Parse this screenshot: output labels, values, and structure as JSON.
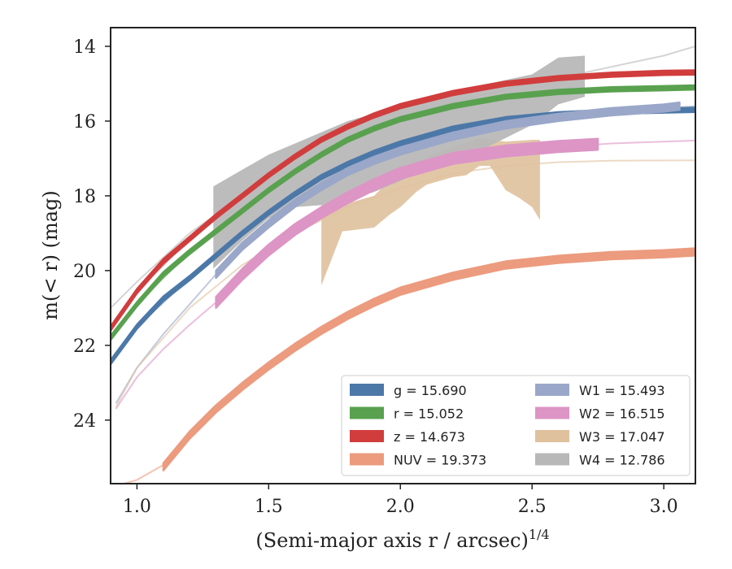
{
  "chart_data": {
    "type": "line",
    "xlabel": "(Semi-major axis r / arcsec)",
    "xlabel_sup": "1/4",
    "ylabel": "m(< r) (mag)",
    "xlim": [
      0.9,
      3.12
    ],
    "ylim": [
      25.7,
      13.5
    ],
    "y_inverted": true,
    "x_ticks": [
      1.0,
      1.5,
      2.0,
      2.5,
      3.0
    ],
    "x_tick_labels": [
      "1.0",
      "1.5",
      "2.0",
      "2.5",
      "3.0"
    ],
    "y_ticks": [
      14,
      16,
      18,
      20,
      22,
      24
    ],
    "y_tick_labels": [
      "14",
      "16",
      "18",
      "20",
      "22",
      "24"
    ],
    "legend": {
      "placement": "lower-right",
      "columns": 2,
      "entries": [
        {
          "label": "g = 15.690",
          "color": "#4c78a8"
        },
        {
          "label": "r = 15.052",
          "color": "#59a14f"
        },
        {
          "label": "z = 14.673",
          "color": "#d13d3d"
        },
        {
          "label": "NUV = 19.373",
          "color": "#ec9b7e"
        },
        {
          "label": "W1 = 15.493",
          "color": "#9aa7c9"
        },
        {
          "label": "W2 = 16.515",
          "color": "#dd95c5"
        },
        {
          "label": "W3 = 17.047",
          "color": "#dfc19d"
        },
        {
          "label": "W4 = 12.786",
          "color": "#b8b8b8"
        }
      ]
    },
    "series": [
      {
        "name": "g",
        "color": "#4c78a8",
        "band_halfwidth": 0.06,
        "x": [
          0.9,
          1.0,
          1.1,
          1.2,
          1.3,
          1.4,
          1.5,
          1.6,
          1.7,
          1.8,
          1.9,
          2.0,
          2.2,
          2.4,
          2.6,
          2.8,
          3.0,
          3.12
        ],
        "y": [
          22.45,
          21.5,
          20.75,
          20.2,
          19.6,
          19.0,
          18.45,
          17.95,
          17.5,
          17.15,
          16.85,
          16.6,
          16.2,
          15.95,
          15.82,
          15.75,
          15.72,
          15.7
        ]
      },
      {
        "name": "r",
        "color": "#59a14f",
        "band_halfwidth": 0.06,
        "x": [
          0.9,
          1.0,
          1.1,
          1.2,
          1.3,
          1.4,
          1.5,
          1.6,
          1.7,
          1.8,
          1.9,
          2.0,
          2.2,
          2.4,
          2.6,
          2.8,
          3.0,
          3.12
        ],
        "y": [
          21.8,
          20.9,
          20.1,
          19.5,
          18.95,
          18.4,
          17.85,
          17.35,
          16.9,
          16.5,
          16.2,
          15.95,
          15.6,
          15.35,
          15.22,
          15.15,
          15.12,
          15.1
        ]
      },
      {
        "name": "z",
        "color": "#d13d3d",
        "band_halfwidth": 0.06,
        "x": [
          0.9,
          1.0,
          1.1,
          1.2,
          1.3,
          1.4,
          1.5,
          1.6,
          1.7,
          1.8,
          1.9,
          2.0,
          2.2,
          2.4,
          2.6,
          2.8,
          3.0,
          3.12
        ],
        "y": [
          21.55,
          20.55,
          19.75,
          19.15,
          18.55,
          18.0,
          17.45,
          16.95,
          16.5,
          16.15,
          15.85,
          15.6,
          15.25,
          15.0,
          14.85,
          14.76,
          14.71,
          14.7
        ]
      },
      {
        "name": "NUV",
        "color": "#ec9b7e",
        "band_halfwidth": 0.1,
        "x": [
          1.1,
          1.2,
          1.3,
          1.4,
          1.5,
          1.6,
          1.7,
          1.8,
          1.9,
          2.0,
          2.2,
          2.4,
          2.6,
          2.8,
          3.0,
          3.12
        ],
        "y": [
          25.25,
          24.4,
          23.7,
          23.1,
          22.55,
          22.05,
          21.6,
          21.2,
          20.85,
          20.55,
          20.15,
          19.85,
          19.7,
          19.6,
          19.55,
          19.5
        ]
      },
      {
        "name": "W1",
        "color": "#9aa7c9",
        "band_halfwidth": 0.1,
        "x": [
          1.3,
          1.4,
          1.5,
          1.6,
          1.7,
          1.8,
          1.9,
          2.0,
          2.2,
          2.4,
          2.6,
          2.8,
          3.0,
          3.06
        ],
        "y": [
          20.1,
          19.35,
          18.75,
          18.2,
          17.75,
          17.35,
          17.05,
          16.8,
          16.4,
          16.1,
          15.9,
          15.75,
          15.65,
          15.6
        ]
      },
      {
        "name": "W2",
        "color": "#dd95c5",
        "band_halfwidth": 0.15,
        "x": [
          1.3,
          1.4,
          1.5,
          1.6,
          1.7,
          1.8,
          1.9,
          2.0,
          2.2,
          2.4,
          2.6,
          2.75
        ],
        "y": [
          20.85,
          20.1,
          19.45,
          18.9,
          18.45,
          18.05,
          17.7,
          17.4,
          17.0,
          16.8,
          16.68,
          16.62
        ]
      },
      {
        "name": "W3",
        "color": "#dfc19d",
        "type": "region",
        "upper": {
          "x": [
            1.7,
            1.8,
            1.9,
            2.0,
            2.1,
            2.2,
            2.3,
            2.4,
            2.5,
            2.53
          ],
          "y": [
            18.25,
            18.2,
            18.0,
            17.3,
            16.95,
            16.7,
            16.45,
            16.55,
            16.5,
            16.5
          ]
        },
        "lower": {
          "x": [
            1.7,
            1.78,
            1.9,
            1.96,
            2.0,
            2.06,
            2.1,
            2.2,
            2.25,
            2.3,
            2.34,
            2.4,
            2.45,
            2.5,
            2.53
          ],
          "y": [
            20.4,
            18.95,
            18.85,
            18.5,
            18.3,
            17.9,
            17.7,
            17.5,
            17.45,
            17.2,
            17.2,
            17.85,
            18.05,
            18.3,
            18.65
          ]
        }
      },
      {
        "name": "W4",
        "color": "#b8b8b8",
        "type": "region",
        "upper": {
          "x": [
            1.29,
            1.4,
            1.5,
            1.6,
            1.7,
            1.8,
            1.9,
            2.0,
            2.1,
            2.2,
            2.3,
            2.4,
            2.5,
            2.6,
            2.7
          ],
          "y": [
            17.75,
            17.3,
            16.9,
            16.6,
            16.3,
            16.0,
            15.8,
            15.6,
            15.4,
            15.2,
            15.05,
            14.9,
            14.75,
            14.3,
            14.25
          ]
        },
        "lower": {
          "x": [
            1.29,
            1.4,
            1.5,
            1.6,
            1.7,
            1.8,
            1.9,
            2.0,
            2.1,
            2.2,
            2.3,
            2.4,
            2.5,
            2.6,
            2.7
          ],
          "y": [
            19.95,
            19.2,
            18.6,
            18.3,
            18.25,
            18.1,
            17.9,
            17.6,
            17.3,
            17.05,
            16.8,
            16.45,
            16.1,
            15.55,
            15.35
          ]
        }
      }
    ],
    "models": [
      {
        "name": "g",
        "color": "#4c78a8",
        "x": [
          0.9,
          1.0,
          1.2,
          1.4,
          1.6,
          1.8,
          2.0,
          2.4,
          2.8,
          3.12
        ],
        "y": [
          22.45,
          21.5,
          20.2,
          19.0,
          17.95,
          17.15,
          16.6,
          15.95,
          15.75,
          15.7
        ]
      },
      {
        "name": "r",
        "color": "#59a14f",
        "x": [
          0.9,
          1.0,
          1.2,
          1.4,
          1.6,
          1.8,
          2.0,
          2.4,
          2.8,
          3.12
        ],
        "y": [
          21.8,
          20.9,
          19.5,
          18.4,
          17.35,
          16.5,
          15.95,
          15.35,
          15.15,
          15.1
        ]
      },
      {
        "name": "z",
        "color": "#d13d3d",
        "x": [
          0.9,
          1.0,
          1.2,
          1.4,
          1.6,
          1.8,
          2.0,
          2.4,
          2.8,
          3.12
        ],
        "y": [
          21.55,
          20.55,
          19.15,
          18.0,
          16.95,
          16.15,
          15.6,
          15.0,
          14.76,
          14.7
        ]
      },
      {
        "name": "NUV",
        "color": "#ec9b7e",
        "x": [
          0.95,
          1.0,
          1.1,
          1.2,
          1.4,
          1.6,
          1.8,
          2.0,
          2.4,
          2.8,
          3.12
        ],
        "y": [
          25.7,
          25.6,
          25.2,
          24.4,
          23.1,
          22.05,
          21.2,
          20.55,
          19.85,
          19.6,
          19.5
        ]
      },
      {
        "name": "W1",
        "color": "#9aa7c9",
        "x": [
          0.92,
          1.0,
          1.1,
          1.2,
          1.3,
          1.5,
          1.7,
          2.0,
          2.4,
          2.8,
          3.12
        ],
        "y": [
          23.55,
          22.6,
          21.7,
          20.9,
          20.1,
          18.75,
          17.75,
          16.8,
          16.1,
          15.75,
          15.6
        ]
      },
      {
        "name": "W2",
        "color": "#dd95c5",
        "x": [
          0.92,
          1.0,
          1.1,
          1.2,
          1.3,
          1.5,
          1.7,
          2.0,
          2.4,
          2.8,
          3.12
        ],
        "y": [
          23.7,
          22.85,
          22.1,
          21.45,
          20.85,
          19.45,
          18.45,
          17.4,
          16.8,
          16.6,
          16.52
        ]
      },
      {
        "name": "W3",
        "color": "#dfc19d",
        "x": [
          0.92,
          1.0,
          1.2,
          1.4,
          1.6,
          1.8,
          2.0,
          2.2,
          2.4,
          2.6,
          2.8,
          3.12
        ],
        "y": [
          23.65,
          22.6,
          21.0,
          19.85,
          19.0,
          18.3,
          17.8,
          17.4,
          17.2,
          17.1,
          17.06,
          17.05
        ]
      },
      {
        "name": "W4",
        "color": "#b8b8b8",
        "x": [
          0.9,
          1.0,
          1.2,
          1.4,
          1.6,
          1.8,
          2.0,
          2.2,
          2.4,
          2.6,
          2.8,
          3.0,
          3.12
        ],
        "y": [
          21.0,
          20.3,
          19.0,
          18.0,
          17.2,
          16.5,
          15.9,
          15.5,
          15.15,
          14.85,
          14.55,
          14.25,
          14.0
        ]
      }
    ]
  }
}
